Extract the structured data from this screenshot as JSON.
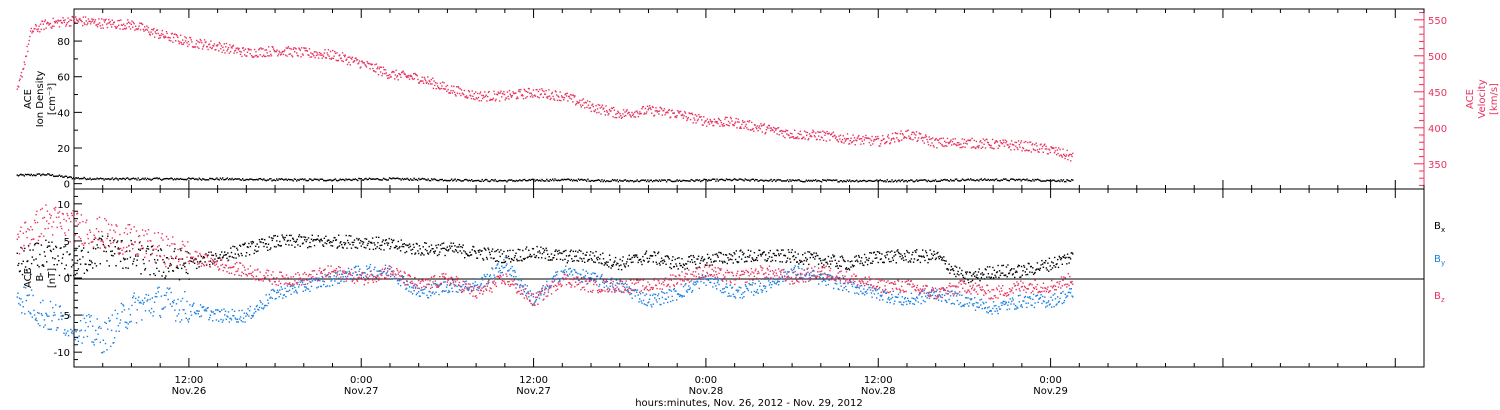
{
  "colors": {
    "black": "#000000",
    "pink": "#e8325e",
    "blue": "#1a7fe0"
  },
  "chart_data": [
    {
      "type": "scatter",
      "panel": "top",
      "ylabel_left": [
        "ACE",
        "Ion Density",
        "[cm⁻³]"
      ],
      "ylabel_right": [
        "ACE",
        "Velocity",
        "[km/s]"
      ],
      "ylim_left": [
        -3,
        98
      ],
      "ylim_right": [
        315,
        565
      ],
      "yticks_left": [
        "0",
        "20",
        "40",
        "60",
        "80"
      ],
      "yticks_right": [
        "350",
        "400",
        "450",
        "500",
        "550"
      ],
      "series": [
        {
          "name": "Ion Density",
          "axis": "left",
          "color": "#000000",
          "x": [
            0,
            2,
            4,
            6,
            10,
            14,
            18,
            22,
            26,
            30,
            34,
            38,
            42,
            46,
            50,
            54,
            58,
            62,
            66,
            70,
            73.5
          ],
          "y": [
            5,
            5.5,
            3.5,
            3,
            3,
            3,
            2.5,
            2.5,
            3,
            2.5,
            2,
            2.5,
            2,
            2,
            2.5,
            2,
            2,
            2,
            2.5,
            2.5,
            2
          ]
        },
        {
          "name": "Velocity",
          "axis": "right",
          "color": "#e8325e",
          "x": [
            0,
            1,
            2,
            4,
            6,
            8,
            10,
            12,
            14,
            16,
            18,
            20,
            22,
            24,
            26,
            28,
            30,
            32,
            34,
            36,
            38,
            40,
            42,
            44,
            46,
            48,
            50,
            52,
            54,
            56,
            58,
            60,
            62,
            64,
            66,
            68,
            70,
            72,
            73.5
          ],
          "y": [
            448,
            535,
            545,
            550,
            546,
            544,
            530,
            520,
            514,
            505,
            508,
            505,
            502,
            490,
            475,
            470,
            455,
            445,
            445,
            450,
            445,
            430,
            420,
            425,
            420,
            410,
            408,
            400,
            392,
            390,
            385,
            382,
            392,
            380,
            380,
            378,
            376,
            370,
            360
          ]
        }
      ]
    },
    {
      "type": "scatter",
      "panel": "bottom",
      "ylabel_left": [
        "ACE",
        "B",
        "[nT]"
      ],
      "ylim": [
        -12,
        12
      ],
      "yticks": [
        "-10",
        "-5",
        "0",
        "5",
        "10"
      ],
      "legend_placement": "right",
      "series": [
        {
          "name": "B",
          "sub": "x",
          "color": "#000000",
          "x": [
            0,
            2,
            4,
            6,
            8,
            10,
            12,
            14,
            16,
            18,
            20,
            22,
            24,
            26,
            28,
            30,
            32,
            34,
            36,
            38,
            40,
            42,
            44,
            46,
            48,
            50,
            52,
            54,
            56,
            58,
            60,
            62,
            64,
            66,
            68,
            70,
            72,
            73.5
          ],
          "y": [
            2,
            3,
            2,
            4,
            3,
            2,
            2,
            3,
            4,
            5,
            5,
            5,
            5,
            4.5,
            4,
            4,
            3.5,
            3,
            3.5,
            3,
            3,
            2,
            3,
            2,
            2.5,
            3,
            3,
            3,
            2.5,
            2,
            3,
            3,
            3,
            0,
            1,
            1,
            2,
            3
          ]
        },
        {
          "name": "B",
          "sub": "y",
          "color": "#1a7fe0",
          "x": [
            0,
            2,
            4,
            6,
            8,
            10,
            12,
            14,
            16,
            18,
            20,
            22,
            24,
            26,
            28,
            30,
            32,
            34,
            36,
            38,
            40,
            42,
            44,
            46,
            48,
            50,
            52,
            54,
            56,
            58,
            60,
            62,
            64,
            66,
            68,
            70,
            72,
            73.5
          ],
          "y": [
            -2,
            -5,
            -6,
            -8,
            -4,
            -3,
            -4,
            -5,
            -5,
            -2,
            -1,
            0,
            1,
            1,
            -2,
            -1,
            -1,
            2,
            -3,
            1,
            0,
            -1,
            -3,
            -2,
            0,
            -2,
            -1,
            1,
            0,
            -1,
            -2,
            -3,
            -2,
            -3,
            -4,
            -3,
            -3,
            -2
          ]
        },
        {
          "name": "B",
          "sub": "z",
          "color": "#e8325e",
          "x": [
            0,
            2,
            4,
            6,
            8,
            10,
            12,
            14,
            16,
            18,
            20,
            22,
            24,
            26,
            28,
            30,
            32,
            34,
            36,
            38,
            40,
            42,
            44,
            46,
            48,
            50,
            52,
            54,
            56,
            58,
            60,
            62,
            64,
            66,
            68,
            70,
            72,
            73.5
          ],
          "y": [
            5,
            8,
            7,
            6,
            5,
            4,
            3,
            2,
            1,
            0,
            0,
            1,
            0,
            1,
            -1,
            0,
            -2,
            0,
            -3,
            0,
            -1,
            -1,
            -1,
            0,
            1,
            0,
            1,
            0,
            1,
            0,
            -1,
            -1,
            -2,
            -1,
            -2,
            -1,
            -1,
            0
          ]
        }
      ]
    }
  ],
  "xaxis": {
    "tick_labels": [
      {
        "x": 12,
        "time": "12:00",
        "date": "Nov.26"
      },
      {
        "x": 24,
        "time": "0:00",
        "date": "Nov.27"
      },
      {
        "x": 36,
        "time": "12:00",
        "date": "Nov.27"
      },
      {
        "x": 48,
        "time": "0:00",
        "date": "Nov.28"
      },
      {
        "x": 60,
        "time": "12:00",
        "date": "Nov.28"
      },
      {
        "x": 72,
        "time": "0:00",
        "date": "Nov.29"
      }
    ],
    "title": "hours:minutes, Nov. 26, 2012 - Nov. 29, 2012",
    "xlim": [
      4,
      98
    ]
  }
}
